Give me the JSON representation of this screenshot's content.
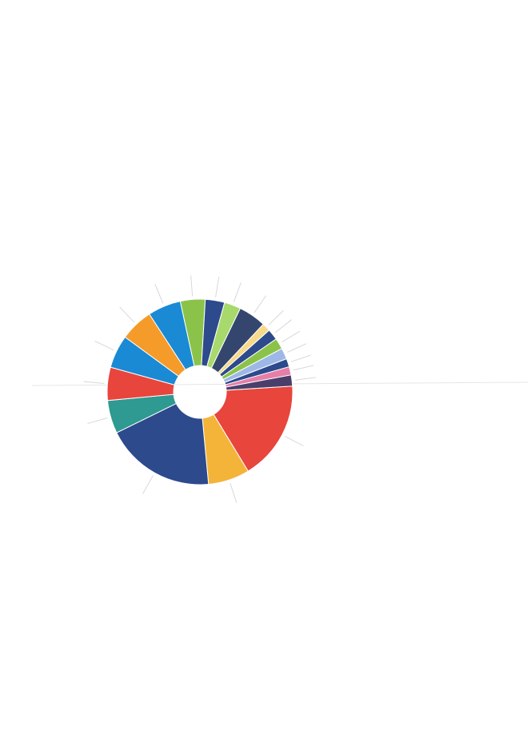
{
  "chart_data": {
    "type": "pie",
    "donut": true,
    "title": "",
    "labels_legible": false,
    "slices": [
      {
        "label": "",
        "value": 18.0,
        "color": "#e8453c"
      },
      {
        "label": "",
        "value": 7.5,
        "color": "#f4b43a"
      },
      {
        "label": "",
        "value": 20.0,
        "color": "#2c4a8c"
      },
      {
        "label": "",
        "value": 6.0,
        "color": "#2e9a91"
      },
      {
        "label": "",
        "value": 6.0,
        "color": "#e8453c"
      },
      {
        "label": "",
        "value": 6.0,
        "color": "#1a8ad4"
      },
      {
        "label": "",
        "value": 6.0,
        "color": "#f59b2a"
      },
      {
        "label": "",
        "value": 6.0,
        "color": "#1a8ad4"
      },
      {
        "label": "",
        "value": 4.5,
        "color": "#8bc34a"
      },
      {
        "label": "",
        "value": 3.5,
        "color": "#2c4a8c"
      },
      {
        "label": "",
        "value": 3.0,
        "color": "#a8d96c"
      },
      {
        "label": "",
        "value": 5.0,
        "color": "#35466e"
      },
      {
        "label": "",
        "value": 1.5,
        "color": "#f7d98a"
      },
      {
        "label": "",
        "value": 2.0,
        "color": "#2c4a8c"
      },
      {
        "label": "",
        "value": 2.0,
        "color": "#8bc34a"
      },
      {
        "label": "",
        "value": 2.0,
        "color": "#9db8e6"
      },
      {
        "label": "",
        "value": 1.5,
        "color": "#2c4a8c"
      },
      {
        "label": "",
        "value": 1.5,
        "color": "#e57fa8"
      },
      {
        "label": "",
        "value": 2.0,
        "color": "#4a3f6b"
      }
    ]
  }
}
